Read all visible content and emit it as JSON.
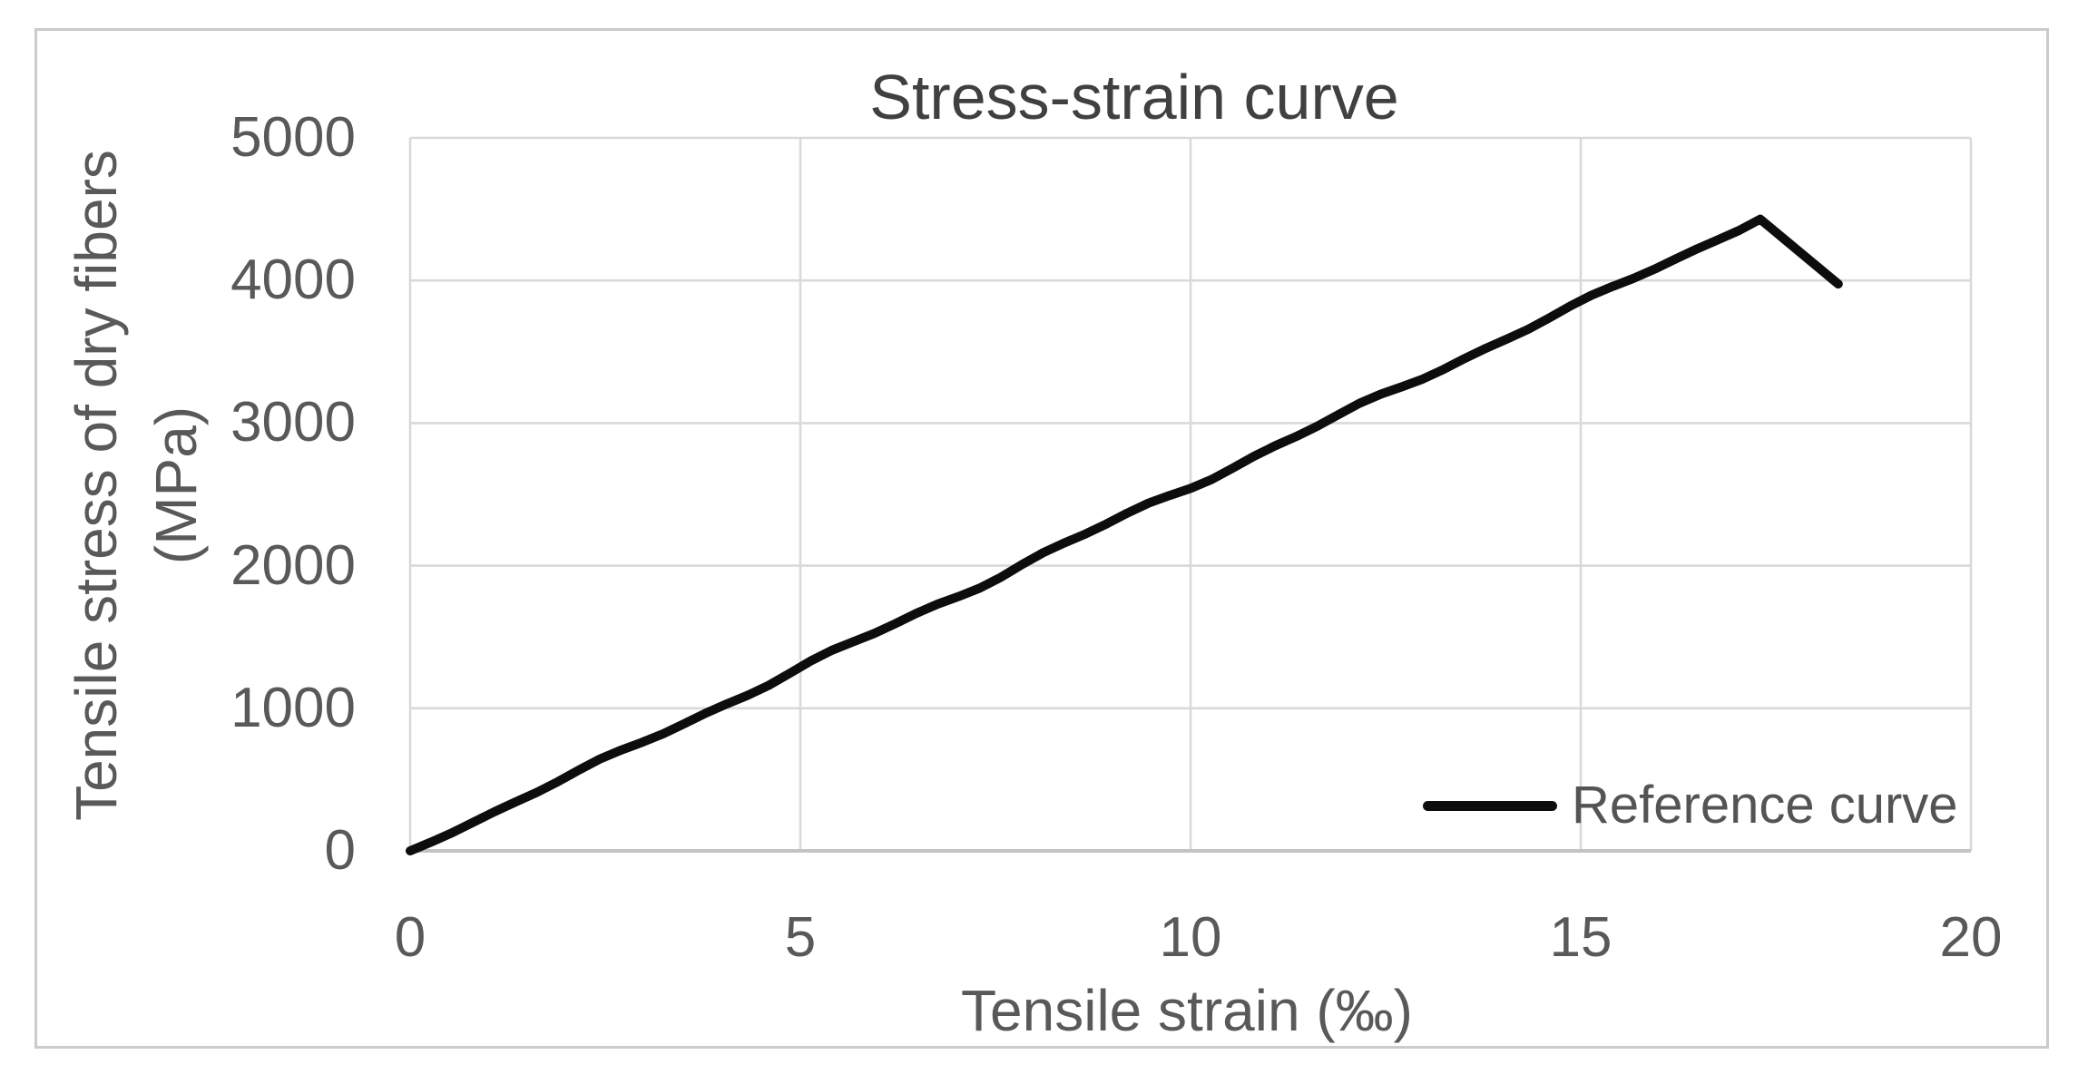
{
  "chart_data": {
    "type": "line",
    "title": "Stress-strain curve",
    "xlabel": "Tensile strain (‰)",
    "ylabel": "Tensile stress of dry fibers (MPa)",
    "ylabel_lines": [
      "Tensile stress of dry fibers",
      "(MPa)"
    ],
    "xlim": [
      0,
      20
    ],
    "ylim": [
      0,
      5000
    ],
    "x_ticks": [
      0,
      5,
      10,
      15,
      20
    ],
    "y_ticks": [
      0,
      1000,
      2000,
      3000,
      4000,
      5000
    ],
    "grid": true,
    "legend_position": "inside bottom-right",
    "series": [
      {
        "name": "Reference curve",
        "color": "#0d0d0d",
        "points": [
          [
            0,
            0
          ],
          [
            17.3,
            4430
          ],
          [
            18.3,
            3975
          ]
        ],
        "shape": "near-linear rise from origin to peak stress, then straight post-peak drop"
      }
    ]
  },
  "legend": {
    "label": "Reference curve"
  },
  "colors": {
    "background": "#ffffff",
    "chart_border": "#cbcbcb",
    "gridline": "#d9d9d9",
    "axis_line": "#c3c3c3",
    "tick_text": "#595959",
    "title_text": "#404040",
    "curve": "#0d0d0d"
  }
}
